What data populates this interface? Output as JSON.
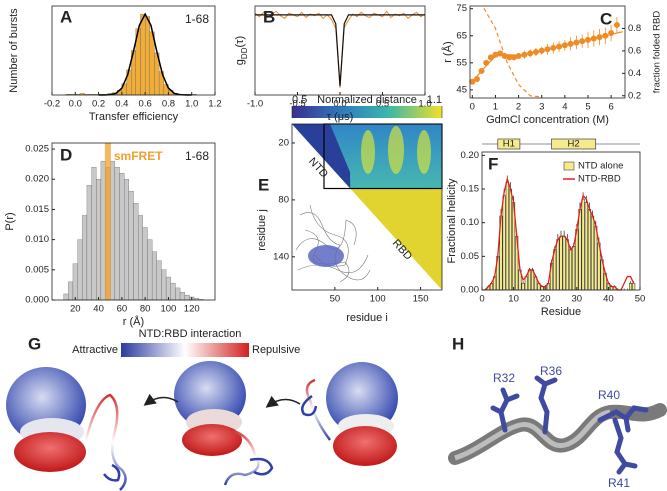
{
  "chart_data": [
    {
      "type": "histogram",
      "panel_label": "A",
      "annotation": "1-68",
      "xlabel": "Transfer efficiency",
      "ylabel": "Number of bursts",
      "bins": [
        -0.2,
        -0.16,
        -0.12,
        -0.08,
        -0.04,
        0,
        0.04,
        0.08,
        0.12,
        0.16,
        0.2,
        0.24,
        0.28,
        0.32,
        0.36,
        0.4,
        0.44,
        0.48,
        0.52,
        0.56,
        0.6,
        0.64,
        0.68,
        0.72,
        0.76,
        0.8,
        0.84,
        0.88,
        0.92,
        0.96,
        1,
        1.04,
        1.08,
        1.12,
        1.16,
        1.2
      ],
      "counts": [
        0,
        0,
        0,
        1,
        1,
        1,
        2,
        1,
        1,
        1,
        1,
        1,
        2,
        3,
        6,
        14,
        31,
        55,
        82,
        100,
        97,
        78,
        52,
        29,
        13,
        6,
        2,
        1,
        1,
        1,
        1,
        0,
        0,
        0,
        0
      ],
      "color": "#f0ad3a",
      "fit": {
        "x": [
          0.2,
          0.25,
          0.3,
          0.35,
          0.4,
          0.45,
          0.5,
          0.55,
          0.6,
          0.65,
          0.7,
          0.75,
          0.8,
          0.85,
          0.9,
          0.95,
          1.0
        ],
        "values": [
          0,
          0.05,
          0.4,
          2.1,
          8.5,
          25,
          54,
          86,
          100,
          86,
          54,
          25,
          8.5,
          2.1,
          0.4,
          0.05,
          0
        ],
        "color": "#000000"
      },
      "xlim": [
        -0.2,
        1.2
      ],
      "xticks": [
        -0.2,
        {
          "value": 0,
          "label": "0.0"
        },
        0.2,
        0.4,
        0.6,
        0.8,
        {
          "value": 1,
          "label": "1.0"
        },
        1.2
      ],
      "ylim": [
        0,
        110
      ]
    },
    {
      "type": "line",
      "panel_label": "B",
      "xlabel": "τ (μs)",
      "ylabel": [
        "g",
        "DD",
        "(τ)"
      ],
      "x": [
        -1,
        -0.95,
        -0.9,
        -0.85,
        -0.8,
        -0.75,
        -0.7,
        -0.65,
        -0.6,
        -0.55,
        -0.5,
        -0.45,
        -0.4,
        -0.35,
        -0.3,
        -0.25,
        -0.2,
        -0.15,
        -0.1,
        -0.05,
        0,
        0.05,
        0.1,
        0.15,
        0.2,
        0.25,
        0.3,
        0.35,
        0.4,
        0.45,
        0.5,
        0.55,
        0.6,
        0.65,
        0.7,
        0.75,
        0.8,
        0.85,
        0.9,
        0.95,
        1
      ],
      "series": [
        {
          "color": "#f08a24",
          "values": [
            1.02,
            0.98,
            1.03,
            0.97,
            1.01,
            1.04,
            0.99,
            0.96,
            1.02,
            1.0,
            0.98,
            1.03,
            0.97,
            1.01,
            0.99,
            1.02,
            0.96,
            1.0,
            0.95,
            0.85,
            0.18,
            0.86,
            0.94,
            1.01,
            0.98,
            1.03,
            0.99,
            0.97,
            1.02,
            1.0,
            0.98,
            1.04,
            0.97,
            1.01,
            0.99,
            1.02,
            0.96,
            1.0,
            1.03,
            0.98,
            1.01
          ]
        },
        {
          "color": "#111111",
          "values": [
            1,
            1,
            1,
            1,
            1,
            1,
            1,
            1,
            1,
            1,
            1,
            1,
            1,
            1,
            1,
            1,
            1,
            1,
            1,
            0.9,
            0.2,
            0.9,
            1,
            1,
            1,
            1,
            1,
            1,
            1,
            1,
            1,
            1,
            1,
            1,
            1,
            1,
            1,
            1,
            1,
            1,
            1
          ]
        }
      ],
      "xlim": [
        -1,
        1
      ],
      "xticks": [
        {
          "value": -1,
          "label": "-1.0"
        },
        -0.5,
        {
          "value": 0,
          "label": "0.0"
        },
        0.5,
        {
          "value": 1,
          "label": "1.0"
        }
      ],
      "ylim": [
        0.1,
        1.1
      ]
    },
    {
      "type": "scatter",
      "panel_label": "C",
      "xlabel": "GdmCl concentration (M)",
      "ylabel": "r (Å)",
      "y2label": "fraction folded RBD",
      "series": [
        {
          "mode": "markers",
          "color": "#f08a24",
          "x": [
            0,
            0.2,
            0.4,
            0.6,
            0.8,
            1.0,
            1.2,
            1.4,
            1.6,
            1.8,
            2.0,
            2.25,
            2.5,
            2.75,
            3.0,
            3.25,
            3.5,
            3.75,
            4.0,
            4.25,
            4.5,
            4.75,
            5.0,
            5.25,
            5.5,
            5.75,
            6.0,
            6.25
          ],
          "values": [
            48,
            49,
            52,
            55,
            57,
            58,
            58.5,
            57.5,
            57,
            57,
            57.5,
            58,
            58.5,
            59,
            59.5,
            60,
            60.5,
            61,
            61.5,
            62,
            62.5,
            63,
            63.5,
            64,
            64.5,
            65,
            66,
            69
          ],
          "errors": [
            1,
            1,
            1,
            1,
            1,
            1,
            1,
            1,
            1,
            1,
            1,
            1.5,
            1.5,
            1.5,
            1.5,
            2,
            2,
            2,
            2,
            2.5,
            2.5,
            2.5,
            3,
            3,
            3,
            3,
            3,
            3
          ]
        },
        {
          "mode": "line",
          "color": "#f08a24",
          "x": [
            0,
            0.5,
            1,
            1.5,
            2,
            3,
            4,
            5,
            6,
            6.5
          ],
          "values": [
            48,
            53,
            57.5,
            58,
            57.8,
            59.5,
            61.5,
            63.5,
            65.5,
            66.5
          ]
        },
        {
          "mode": "line",
          "dash": true,
          "axis": "y2",
          "color": "#f08a24",
          "x": [
            0.5,
            1,
            1.5,
            2,
            2.5,
            3
          ],
          "values": [
            0.98,
            0.8,
            0.5,
            0.3,
            0.2,
            0.19
          ]
        }
      ],
      "xlim": [
        -0.1,
        6.6
      ],
      "xticks": [
        0,
        1,
        2,
        3,
        4,
        5,
        6
      ],
      "ylim": [
        42,
        76
      ],
      "yticks": [
        45,
        55,
        65,
        75
      ],
      "y2lim": [
        0.18,
        1.0
      ],
      "y2ticks": [
        0.2,
        0.4,
        0.6,
        0.8
      ]
    },
    {
      "type": "histogram",
      "panel_label": "D",
      "annotation": "1-68",
      "xlabel": "r (Å)",
      "ylabel": "P(r)",
      "bins": [
        10,
        14,
        18,
        22,
        26,
        30,
        34,
        38,
        42,
        46,
        50,
        54,
        58,
        62,
        66,
        70,
        74,
        78,
        82,
        86,
        90,
        94,
        98,
        102,
        106,
        110,
        114,
        118,
        122,
        126,
        130
      ],
      "counts": [
        0.001,
        0.003,
        0.006,
        0.01,
        0.014,
        0.019,
        0.022,
        0.02,
        0.023,
        0.022,
        0.023,
        0.022,
        0.021,
        0.02,
        0.018,
        0.016,
        0.014,
        0.012,
        0.01,
        0.008,
        0.0065,
        0.005,
        0.0038,
        0.0028,
        0.002,
        0.0013,
        0.0008,
        0.0005,
        0.0003,
        0.0001
      ],
      "color": "#c8c8c8",
      "smfret": {
        "label": "smFRET",
        "value": 48,
        "color": "#f0a030"
      },
      "xlim": [
        0,
        140
      ],
      "xticks": [
        20,
        40,
        60,
        80,
        100,
        120
      ],
      "ylim": [
        0,
        0.026
      ],
      "yticks": [
        {
          "value": 0,
          "label": "0.000"
        },
        0.005,
        {
          "value": 0.01,
          "label": "0.010"
        },
        0.015,
        {
          "value": 0.02,
          "label": "0.020"
        },
        0.025
      ]
    },
    {
      "type": "bar",
      "panel_label": "F",
      "xlabel": "Residue",
      "ylabel": "Fractional helicity",
      "x": [
        1,
        2,
        3,
        4,
        5,
        6,
        7,
        8,
        9,
        10,
        11,
        12,
        13,
        14,
        15,
        16,
        17,
        18,
        19,
        20,
        21,
        22,
        23,
        24,
        25,
        26,
        27,
        28,
        29,
        30,
        31,
        32,
        33,
        34,
        35,
        36,
        37,
        38,
        39,
        40,
        41,
        42,
        43,
        44,
        45,
        46,
        47,
        48
      ],
      "series": [
        {
          "name": "NTD alone",
          "color": "#f5eb8c",
          "values": [
            0,
            0.005,
            0.01,
            0.02,
            0.05,
            0.11,
            0.14,
            0.16,
            0.15,
            0.13,
            0.08,
            0.03,
            0.01,
            0.02,
            0.03,
            0.03,
            0.02,
            0.01,
            0.005,
            0.005,
            0.01,
            0.04,
            0.06,
            0.075,
            0.08,
            0.08,
            0.075,
            0.06,
            0.065,
            0.09,
            0.12,
            0.135,
            0.13,
            0.12,
            0.11,
            0.095,
            0.07,
            0.045,
            0.025,
            0.01,
            0.005,
            0.005,
            0,
            0,
            0,
            0,
            0.01,
            0.01
          ],
          "errors": [
            0.002,
            0.002,
            0.002,
            0.002,
            0.005,
            0.01,
            0.01,
            0.01,
            0.01,
            0.01,
            0.005,
            0.005,
            0.003,
            0.003,
            0.003,
            0.003,
            0.003,
            0.002,
            0.002,
            0.002,
            0.003,
            0.005,
            0.005,
            0.008,
            0.008,
            0.008,
            0.008,
            0.005,
            0.005,
            0.008,
            0.01,
            0.01,
            0.01,
            0.01,
            0.008,
            0.008,
            0.008,
            0.005,
            0.003,
            0.002,
            0.002,
            0.002,
            0.002,
            0.002,
            0.002,
            0.002,
            0.003,
            0.003
          ]
        },
        {
          "name": "NTD-RBD",
          "color": "#e02020",
          "values": [
            0,
            0.005,
            0.01,
            0.02,
            0.05,
            0.11,
            0.145,
            0.165,
            0.15,
            0.13,
            0.08,
            0.03,
            0.015,
            0.02,
            0.03,
            0.03,
            0.02,
            0.01,
            0.005,
            0.005,
            0.01,
            0.04,
            0.06,
            0.075,
            0.08,
            0.08,
            0.075,
            0.06,
            0.065,
            0.09,
            0.12,
            0.14,
            0.135,
            0.12,
            0.11,
            0.095,
            0.07,
            0.045,
            0.025,
            0.01,
            0.005,
            0.005,
            0,
            0,
            0.01,
            0.02,
            0.02,
            0.01
          ]
        }
      ],
      "helices": [
        {
          "label": "H1",
          "start": 5,
          "end": 12
        },
        {
          "label": "H2",
          "start": 22,
          "end": 36
        }
      ],
      "xlim": [
        0,
        50
      ],
      "xticks": [
        0,
        10,
        20,
        30,
        40,
        50
      ],
      "ylim": [
        0,
        0.205
      ],
      "yticks": [
        {
          "value": 0,
          "label": "0.00"
        },
        0.05,
        {
          "value": 0.1,
          "label": "0.10"
        },
        0.15,
        {
          "value": 0.2,
          "label": "0.20"
        }
      ]
    }
  ],
  "panel_e": {
    "panel_label": "E",
    "colorbar_label": "Normalized distance",
    "colorbar_ticks": [
      0.5,
      1.1
    ],
    "xlabel": "residue i",
    "ylabel": "residue j",
    "xlim": [
      0,
      175
    ],
    "ylim": [
      0,
      175
    ],
    "xticks": [
      50,
      100,
      150
    ],
    "yticks": [
      20,
      80,
      140
    ],
    "labels": [
      "NTD",
      "RBD"
    ]
  },
  "panel_g": {
    "panel_label": "G",
    "colorbar_label": "NTD:RBD interaction",
    "colorbar_ends": [
      "Attractive",
      "Repulsive"
    ]
  },
  "panel_h": {
    "panel_label": "H",
    "residues": [
      "R32",
      "R36",
      "R40",
      "R41"
    ]
  }
}
